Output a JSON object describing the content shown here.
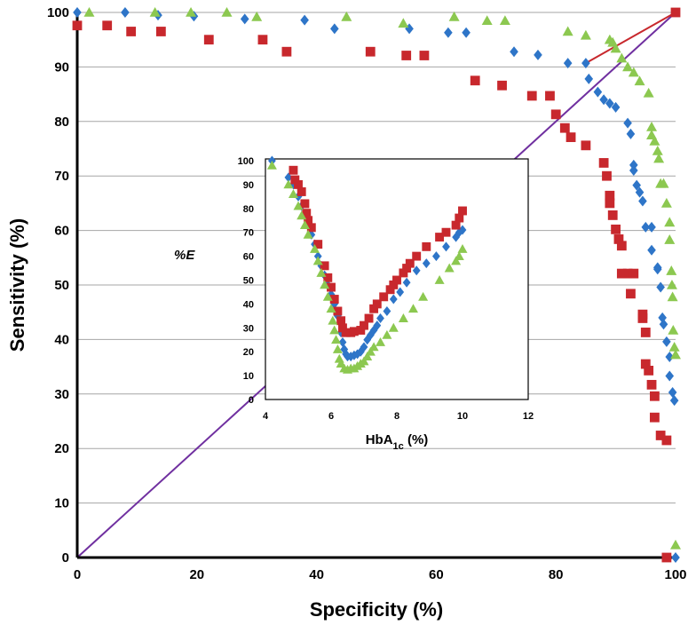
{
  "colors": {
    "blue": "#2E75C8",
    "red": "#C8282D",
    "green": "#8CC850",
    "diagonal": "#7030A0",
    "grid": "#A6A6A6"
  },
  "chart_data": [
    {
      "type": "scatter",
      "name": "ROC curves",
      "xlabel": "Specificity (%)",
      "ylabel": "Sensitivity (%)",
      "xlim": [
        0,
        100
      ],
      "ylim": [
        0,
        100
      ],
      "xticks": [
        0,
        20,
        40,
        60,
        80,
        100
      ],
      "yticks": [
        0,
        10,
        20,
        30,
        40,
        50,
        60,
        70,
        80,
        90,
        100
      ],
      "grid": "horizontal",
      "reference_line": {
        "from": [
          0,
          0
        ],
        "to": [
          100,
          100
        ]
      },
      "series": [
        {
          "name": "blue-diamonds",
          "marker": "diamond",
          "color": "#2E75C8",
          "points": [
            [
              0,
              100
            ],
            [
              8,
              100
            ],
            [
              13.5,
              99.5
            ],
            [
              19.5,
              99.3
            ],
            [
              28,
              98.8
            ],
            [
              38,
              98.6
            ],
            [
              43,
              97
            ],
            [
              55.5,
              97
            ],
            [
              62,
              96.3
            ],
            [
              65,
              96.3
            ],
            [
              73,
              92.8
            ],
            [
              77,
              92.2
            ],
            [
              82,
              90.7
            ],
            [
              85,
              90.7
            ],
            [
              85.5,
              87.8
            ],
            [
              87,
              85.4
            ],
            [
              88,
              84
            ],
            [
              89,
              83.3
            ],
            [
              90,
              82.6
            ],
            [
              92,
              79.7
            ],
            [
              92.5,
              77.7
            ],
            [
              93,
              72
            ],
            [
              93,
              71
            ],
            [
              93.5,
              68.3
            ],
            [
              94,
              67
            ],
            [
              94.5,
              65.4
            ],
            [
              95,
              60.6
            ],
            [
              96,
              60.6
            ],
            [
              96,
              56.4
            ],
            [
              97,
              53.2
            ],
            [
              97,
              52.9
            ],
            [
              97.5,
              49.6
            ],
            [
              97.8,
              44
            ],
            [
              98,
              42.8
            ],
            [
              98.5,
              39.6
            ],
            [
              99,
              36.8
            ],
            [
              99,
              33.3
            ],
            [
              99.5,
              30.3
            ],
            [
              99.8,
              28.8
            ],
            [
              100,
              0
            ]
          ]
        },
        {
          "name": "red-squares",
          "marker": "square",
          "color": "#C8282D",
          "points": [
            [
              0,
              97.6
            ],
            [
              5,
              97.6
            ],
            [
              9,
              96.5
            ],
            [
              14,
              96.5
            ],
            [
              22,
              95
            ],
            [
              31,
              95
            ],
            [
              35,
              92.8
            ],
            [
              49,
              92.8
            ],
            [
              55,
              92.1
            ],
            [
              58,
              92.1
            ],
            [
              66.5,
              87.5
            ],
            [
              71,
              86.6
            ],
            [
              76,
              84.7
            ],
            [
              79,
              84.7
            ],
            [
              80,
              81.3
            ],
            [
              81.5,
              78.8
            ],
            [
              82.5,
              77.1
            ],
            [
              85,
              75.6
            ],
            [
              88,
              72.4
            ],
            [
              88.5,
              70
            ],
            [
              89,
              66.4
            ],
            [
              89,
              65
            ],
            [
              89.5,
              62.8
            ],
            [
              90,
              60.2
            ],
            [
              90.5,
              58.4
            ],
            [
              91,
              57.2
            ],
            [
              91,
              52.1
            ],
            [
              92,
              52.1
            ],
            [
              92.5,
              48.4
            ],
            [
              93,
              52.1
            ],
            [
              94.5,
              44.6
            ],
            [
              94.5,
              43.9
            ],
            [
              95,
              41.3
            ],
            [
              95,
              35.5
            ],
            [
              95.5,
              34.3
            ],
            [
              96,
              31.7
            ],
            [
              96.5,
              29.6
            ],
            [
              96.5,
              25.7
            ],
            [
              97.5,
              22.4
            ],
            [
              98.5,
              21.5
            ],
            [
              98.5,
              0
            ],
            [
              100,
              100
            ]
          ]
        },
        {
          "name": "green-triangles",
          "marker": "triangle",
          "color": "#8CC850",
          "points": [
            [
              2,
              100
            ],
            [
              13,
              100
            ],
            [
              19,
              100
            ],
            [
              25,
              100
            ],
            [
              30,
              99.2
            ],
            [
              45,
              99.2
            ],
            [
              54.5,
              98
            ],
            [
              63,
              99.2
            ],
            [
              68.5,
              98.5
            ],
            [
              71.5,
              98.5
            ],
            [
              82,
              96.5
            ],
            [
              85,
              95.8
            ],
            [
              89,
              95
            ],
            [
              89.5,
              94.5
            ],
            [
              90,
              93.4
            ],
            [
              91,
              91.6
            ],
            [
              92,
              90
            ],
            [
              93,
              89
            ],
            [
              94,
              87.4
            ],
            [
              95.5,
              85.2
            ],
            [
              96,
              79
            ],
            [
              96,
              77.5
            ],
            [
              96.5,
              76.4
            ],
            [
              97,
              74.6
            ],
            [
              97.2,
              73.2
            ],
            [
              97.5,
              68.6
            ],
            [
              98,
              68.6
            ],
            [
              98.5,
              65
            ],
            [
              99,
              61.5
            ],
            [
              99,
              58.3
            ],
            [
              99.3,
              52.6
            ],
            [
              99.4,
              50
            ],
            [
              99.5,
              47.8
            ],
            [
              99.6,
              41.7
            ],
            [
              99.8,
              38.6
            ],
            [
              100,
              37.2
            ],
            [
              100,
              2.3
            ]
          ]
        }
      ],
      "connector": {
        "color": "#C8282D",
        "from": [
          85,
          90.7
        ],
        "to": [
          100,
          100
        ]
      }
    },
    {
      "type": "scatter",
      "name": "inset %E vs HbA1c",
      "ylabel": "%E",
      "xlabel_main": "HbA",
      "xlabel_sub": "1c",
      "xlabel_unit": " (%)",
      "xlim": [
        4,
        12
      ],
      "ylim": [
        0,
        100
      ],
      "xticks": [
        4,
        6,
        8,
        10,
        12
      ],
      "yticks": [
        0,
        10,
        20,
        30,
        40,
        50,
        60,
        70,
        80,
        90,
        100
      ],
      "series": [
        {
          "name": "blue-diamonds",
          "marker": "diamond",
          "color": "#2E75C8",
          "points": [
            [
              4.2,
              100
            ],
            [
              4.7,
              93
            ],
            [
              4.85,
              90
            ],
            [
              5.0,
              85
            ],
            [
              5.1,
              81
            ],
            [
              5.2,
              77
            ],
            [
              5.3,
              73
            ],
            [
              5.4,
              69
            ],
            [
              5.5,
              65
            ],
            [
              5.6,
              60
            ],
            [
              5.7,
              56
            ],
            [
              5.8,
              52
            ],
            [
              5.9,
              48
            ],
            [
              6.0,
              44
            ],
            [
              6.1,
              40
            ],
            [
              6.2,
              35
            ],
            [
              6.3,
              28
            ],
            [
              6.35,
              24
            ],
            [
              6.4,
              21
            ],
            [
              6.45,
              19
            ],
            [
              6.5,
              18
            ],
            [
              6.6,
              18
            ],
            [
              6.7,
              18.5
            ],
            [
              6.8,
              19
            ],
            [
              6.9,
              20
            ],
            [
              7.0,
              22
            ],
            [
              7.1,
              25
            ],
            [
              7.2,
              27
            ],
            [
              7.3,
              29
            ],
            [
              7.4,
              31
            ],
            [
              7.5,
              34
            ],
            [
              7.7,
              37
            ],
            [
              7.9,
              42
            ],
            [
              8.1,
              45
            ],
            [
              8.3,
              49
            ],
            [
              8.6,
              54
            ],
            [
              8.9,
              57
            ],
            [
              9.2,
              60
            ],
            [
              9.5,
              64
            ],
            [
              9.8,
              68
            ],
            [
              9.9,
              70
            ],
            [
              10.0,
              71
            ]
          ]
        },
        {
          "name": "red-squares",
          "marker": "square",
          "color": "#C8282D",
          "points": [
            [
              4.85,
              96
            ],
            [
              4.9,
              92
            ],
            [
              5.0,
              90
            ],
            [
              5.1,
              87
            ],
            [
              5.2,
              82
            ],
            [
              5.25,
              78
            ],
            [
              5.3,
              75
            ],
            [
              5.4,
              72
            ],
            [
              5.6,
              65
            ],
            [
              5.8,
              56
            ],
            [
              5.9,
              51
            ],
            [
              6.0,
              47
            ],
            [
              6.1,
              42
            ],
            [
              6.2,
              37
            ],
            [
              6.3,
              33
            ],
            [
              6.35,
              30
            ],
            [
              6.45,
              28
            ],
            [
              6.6,
              28
            ],
            [
              6.7,
              28.5
            ],
            [
              6.9,
              29
            ],
            [
              7.0,
              31
            ],
            [
              7.15,
              34
            ],
            [
              7.3,
              38
            ],
            [
              7.4,
              40
            ],
            [
              7.6,
              43
            ],
            [
              7.8,
              46
            ],
            [
              7.9,
              48
            ],
            [
              8.0,
              50
            ],
            [
              8.2,
              53
            ],
            [
              8.3,
              55
            ],
            [
              8.4,
              57
            ],
            [
              8.6,
              60
            ],
            [
              8.9,
              64
            ],
            [
              9.3,
              68
            ],
            [
              9.5,
              70
            ],
            [
              9.8,
              73
            ],
            [
              9.9,
              76
            ],
            [
              10.0,
              79
            ]
          ]
        },
        {
          "name": "green-triangles",
          "marker": "triangle",
          "color": "#8CC850",
          "points": [
            [
              4.2,
              98
            ],
            [
              4.7,
              90
            ],
            [
              4.85,
              86
            ],
            [
              5.0,
              81
            ],
            [
              5.1,
              77
            ],
            [
              5.2,
              73
            ],
            [
              5.3,
              69
            ],
            [
              5.5,
              63
            ],
            [
              5.6,
              58
            ],
            [
              5.7,
              53
            ],
            [
              5.8,
              48
            ],
            [
              5.9,
              43
            ],
            [
              6.0,
              38
            ],
            [
              6.05,
              33
            ],
            [
              6.1,
              29
            ],
            [
              6.15,
              25
            ],
            [
              6.2,
              21
            ],
            [
              6.25,
              17
            ],
            [
              6.3,
              15
            ],
            [
              6.4,
              13
            ],
            [
              6.5,
              12.5
            ],
            [
              6.6,
              13
            ],
            [
              6.7,
              13
            ],
            [
              6.8,
              14
            ],
            [
              6.9,
              15
            ],
            [
              7.0,
              16
            ],
            [
              7.1,
              18
            ],
            [
              7.2,
              20
            ],
            [
              7.3,
              22
            ],
            [
              7.5,
              24
            ],
            [
              7.7,
              27
            ],
            [
              7.9,
              30
            ],
            [
              8.2,
              34
            ],
            [
              8.5,
              38
            ],
            [
              8.8,
              43
            ],
            [
              9.3,
              50
            ],
            [
              9.6,
              55
            ],
            [
              9.8,
              58
            ],
            [
              9.9,
              60
            ],
            [
              10.0,
              63
            ]
          ]
        }
      ]
    }
  ]
}
